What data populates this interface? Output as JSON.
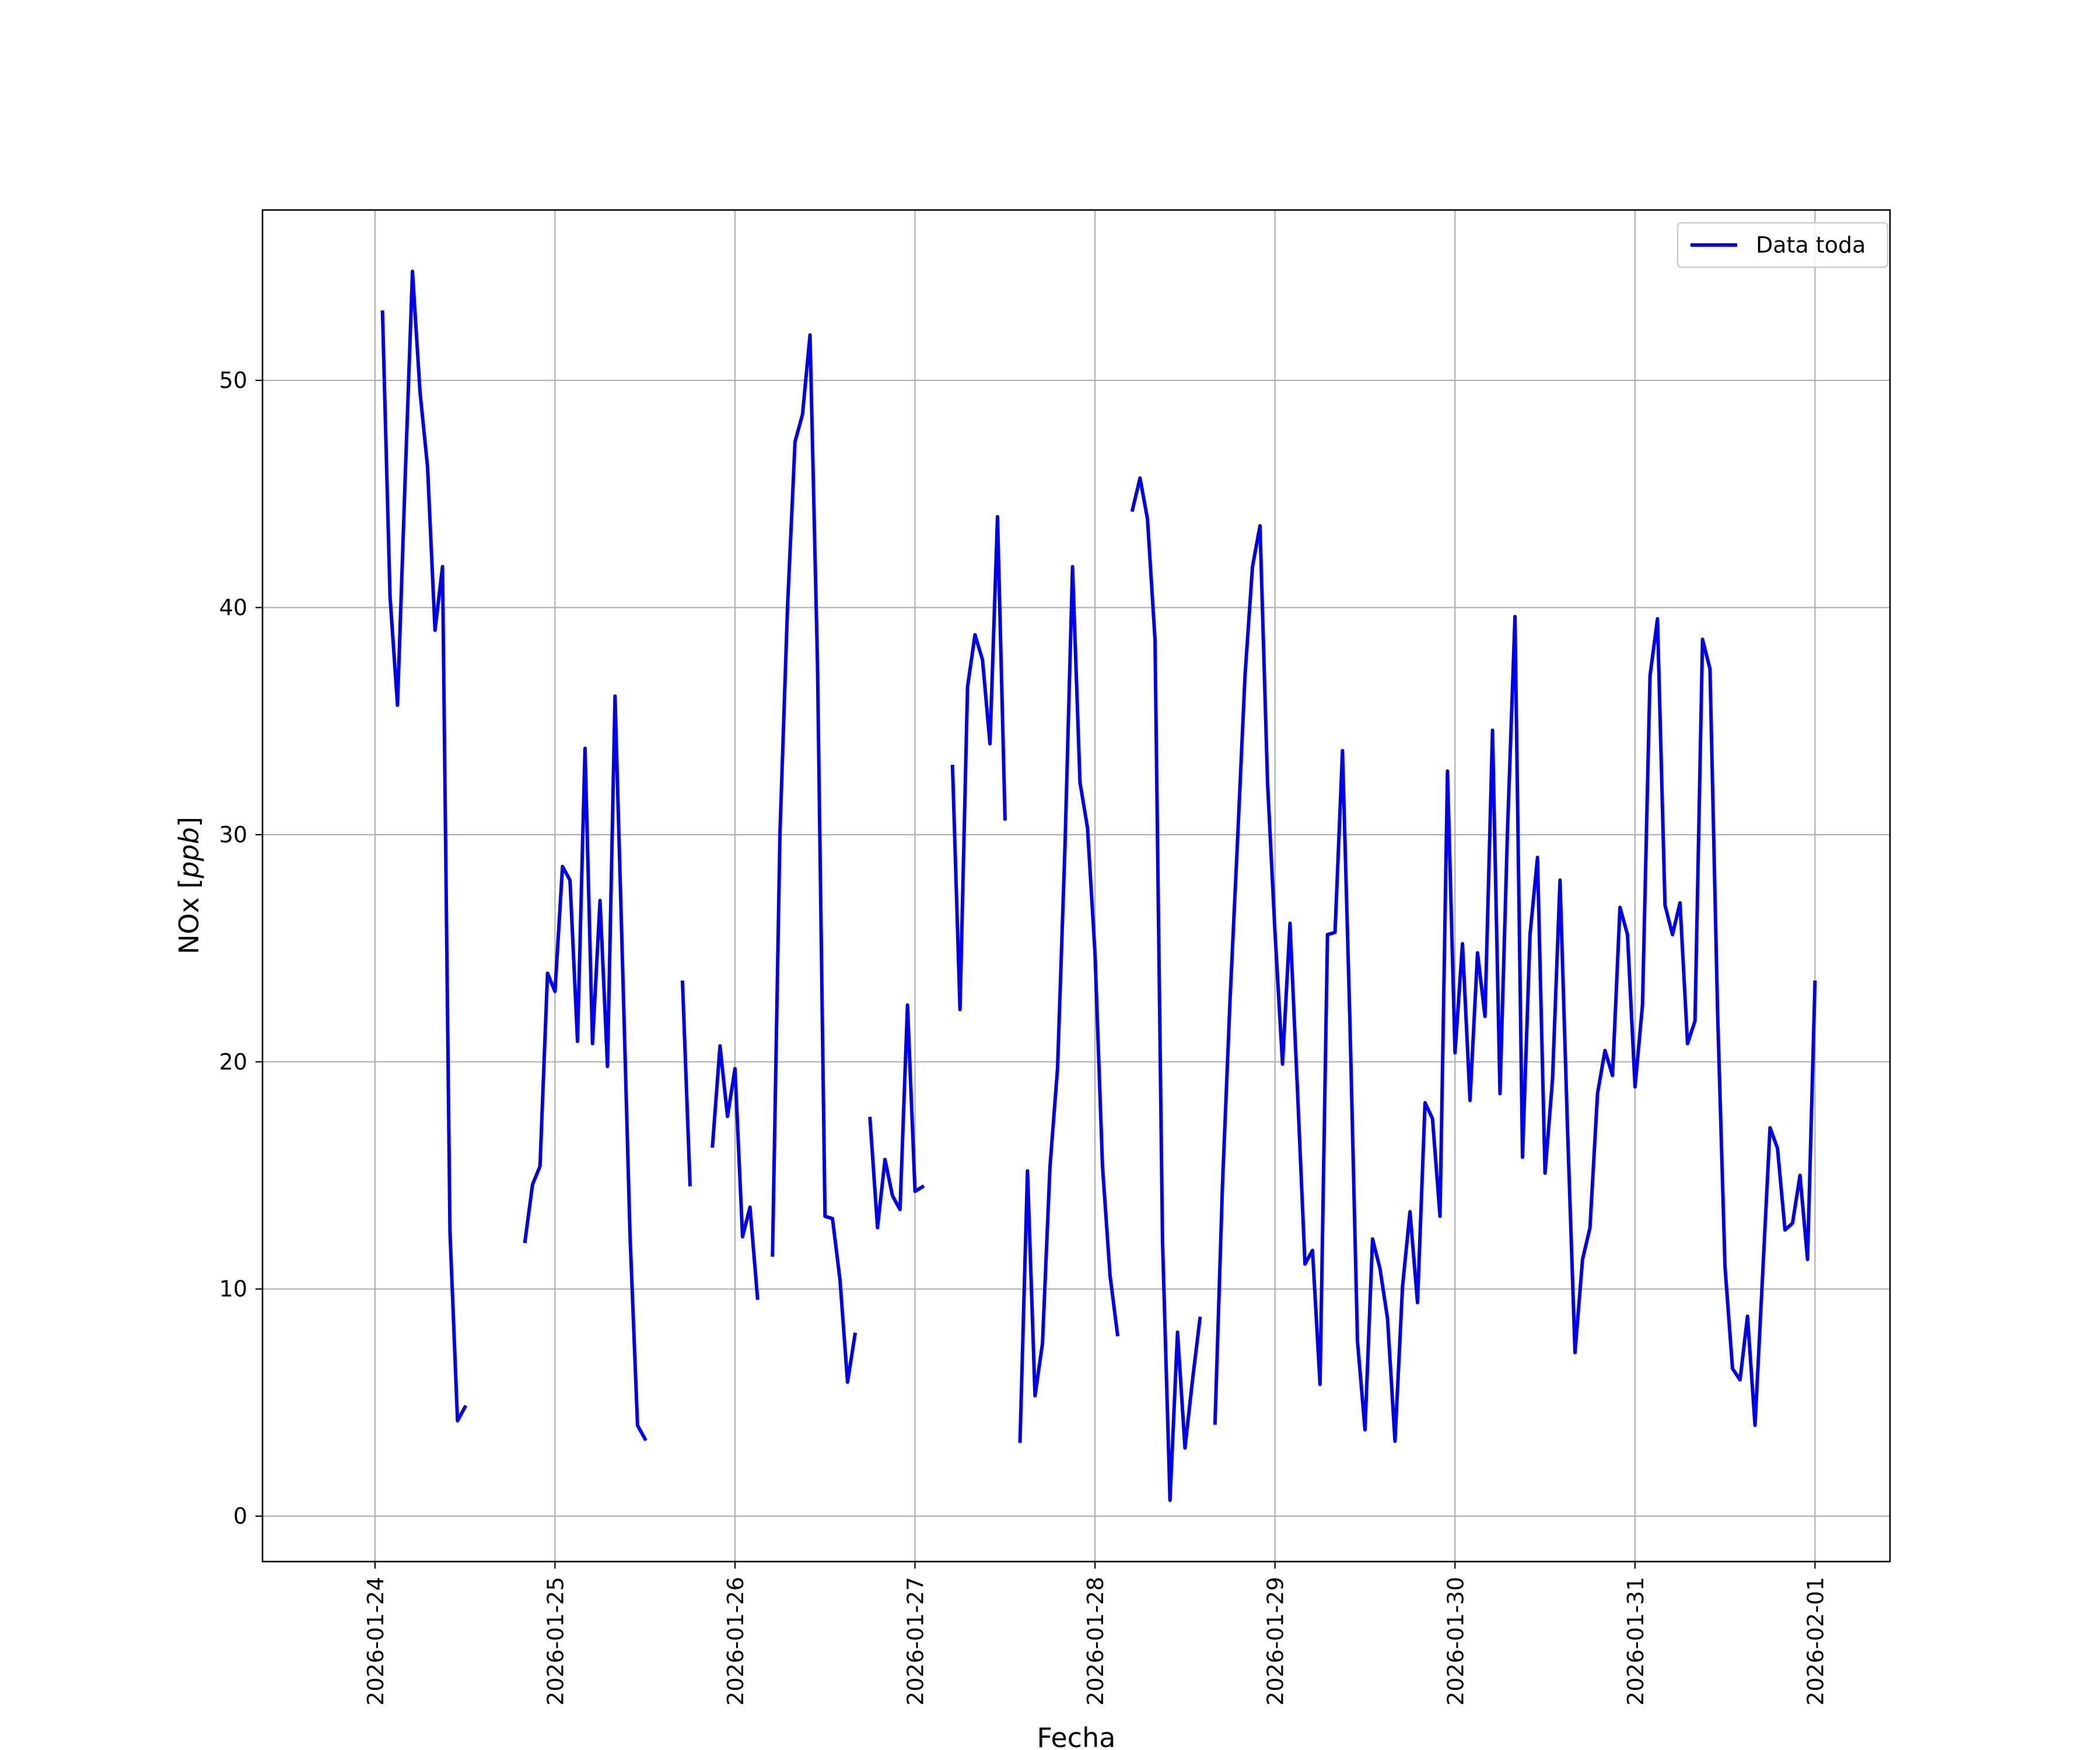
{
  "chart_data": {
    "type": "line",
    "title": "",
    "xlabel": "Fecha",
    "ylabel": "NOx [ppb]",
    "ylabel_main": "NOx ",
    "ylabel_unit": "ppb",
    "x_ticks": [
      "2026-01-24",
      "2026-01-25",
      "2026-01-26",
      "2026-01-27",
      "2026-01-28",
      "2026-01-29",
      "2026-01-30",
      "2026-01-31",
      "2026-02-01"
    ],
    "x_range": [
      "2026-01-23T09:00",
      "2026-02-01T10:00"
    ],
    "y_ticks": [
      0,
      10,
      20,
      30,
      40,
      50
    ],
    "ylim": [
      -2,
      57.5
    ],
    "grid": true,
    "legend_position": "top-right",
    "line_color": "#0000ee",
    "series": [
      {
        "name": "Data toda",
        "segments": [
          [
            [
              "2026-01-24T01:00",
              53
            ],
            [
              "2026-01-24T02:00",
              40.5
            ],
            [
              "2026-01-24T03:00",
              35.7
            ],
            [
              "2026-01-24T04:00",
              45.5
            ],
            [
              "2026-01-24T05:00",
              54.8
            ],
            [
              "2026-01-24T06:00",
              49.5
            ],
            [
              "2026-01-24T07:00",
              46.2
            ],
            [
              "2026-01-24T08:00",
              39
            ],
            [
              "2026-01-24T09:00",
              41.8
            ],
            [
              "2026-01-24T10:00",
              12.5
            ],
            [
              "2026-01-24T11:00",
              4.2
            ],
            [
              "2026-01-24T12:00",
              4.8
            ]
          ],
          [
            [
              "2026-01-24T20:00",
              12.1
            ],
            [
              "2026-01-24T21:00",
              14.6
            ],
            [
              "2026-01-24T22:00",
              15.4
            ],
            [
              "2026-01-24T23:00",
              23.9
            ],
            [
              "2026-01-25T00:00",
              23.1
            ],
            [
              "2026-01-25T01:00",
              28.6
            ],
            [
              "2026-01-25T02:00",
              28
            ],
            [
              "2026-01-25T03:00",
              20.9
            ],
            [
              "2026-01-25T04:00",
              33.8
            ],
            [
              "2026-01-25T05:00",
              20.8
            ],
            [
              "2026-01-25T06:00",
              27.1
            ],
            [
              "2026-01-25T07:00",
              19.8
            ],
            [
              "2026-01-25T08:00",
              36.1
            ],
            [
              "2026-01-25T09:00",
              24.4
            ],
            [
              "2026-01-25T10:00",
              12.4
            ],
            [
              "2026-01-25T11:00",
              4
            ],
            [
              "2026-01-25T12:00",
              3.4
            ]
          ],
          [
            [
              "2026-01-25T17:00",
              23.5
            ],
            [
              "2026-01-25T18:00",
              14.6
            ]
          ],
          [
            [
              "2026-01-25T21:00",
              16.3
            ],
            [
              "2026-01-25T22:00",
              20.7
            ],
            [
              "2026-01-25T23:00",
              17.6
            ],
            [
              "2026-01-26T00:00",
              19.7
            ],
            [
              "2026-01-26T01:00",
              12.3
            ],
            [
              "2026-01-26T02:00",
              13.6
            ],
            [
              "2026-01-26T03:00",
              9.6
            ]
          ],
          [
            [
              "2026-01-26T05:00",
              11.5
            ],
            [
              "2026-01-26T06:00",
              30.1
            ],
            [
              "2026-01-26T07:00",
              40
            ],
            [
              "2026-01-26T08:00",
              47.3
            ],
            [
              "2026-01-26T09:00",
              48.5
            ],
            [
              "2026-01-26T10:00",
              52
            ],
            [
              "2026-01-26T11:00",
              37.5
            ],
            [
              "2026-01-26T12:00",
              13.2
            ],
            [
              "2026-01-26T13:00",
              13.1
            ],
            [
              "2026-01-26T14:00",
              10.4
            ],
            [
              "2026-01-26T15:00",
              5.9
            ],
            [
              "2026-01-26T16:00",
              8
            ]
          ],
          [
            [
              "2026-01-26T18:00",
              17.5
            ],
            [
              "2026-01-26T19:00",
              12.7
            ],
            [
              "2026-01-26T20:00",
              15.7
            ],
            [
              "2026-01-26T21:00",
              14.1
            ],
            [
              "2026-01-26T22:00",
              13.5
            ],
            [
              "2026-01-26T23:00",
              22.5
            ],
            [
              "2026-01-27T00:00",
              14.3
            ],
            [
              "2026-01-27T01:00",
              14.5
            ]
          ],
          [
            [
              "2026-01-27T05:00",
              33
            ],
            [
              "2026-01-27T06:00",
              22.3
            ],
            [
              "2026-01-27T07:00",
              36.5
            ],
            [
              "2026-01-27T08:00",
              38.8
            ],
            [
              "2026-01-27T09:00",
              37.7
            ],
            [
              "2026-01-27T10:00",
              34
            ],
            [
              "2026-01-27T11:00",
              44
            ],
            [
              "2026-01-27T12:00",
              30.7
            ]
          ],
          [
            [
              "2026-01-27T14:00",
              3.3
            ],
            [
              "2026-01-27T15:00",
              15.2
            ],
            [
              "2026-01-27T16:00",
              5.3
            ],
            [
              "2026-01-27T17:00",
              7.6
            ],
            [
              "2026-01-27T18:00",
              15.4
            ],
            [
              "2026-01-27T19:00",
              19.7
            ],
            [
              "2026-01-27T20:00",
              29.5
            ],
            [
              "2026-01-27T21:00",
              41.8
            ],
            [
              "2026-01-27T22:00",
              32.3
            ],
            [
              "2026-01-27T23:00",
              30.3
            ],
            [
              "2026-01-28T00:00",
              24.8
            ],
            [
              "2026-01-28T01:00",
              15.4
            ],
            [
              "2026-01-28T02:00",
              10.6
            ],
            [
              "2026-01-28T03:00",
              8
            ]
          ],
          [
            [
              "2026-01-28T05:00",
              44.3
            ],
            [
              "2026-01-28T06:00",
              45.7
            ],
            [
              "2026-01-28T07:00",
              43.9
            ],
            [
              "2026-01-28T08:00",
              38.6
            ],
            [
              "2026-01-28T09:00",
              12.1
            ],
            [
              "2026-01-28T10:00",
              0.7
            ],
            [
              "2026-01-28T11:00",
              8.1
            ],
            [
              "2026-01-28T12:00",
              3
            ],
            [
              "2026-01-28T13:00",
              6
            ],
            [
              "2026-01-28T14:00",
              8.7
            ]
          ],
          [
            [
              "2026-01-28T16:00",
              4.1
            ],
            [
              "2026-01-28T17:00",
              14.6
            ],
            [
              "2026-01-28T18:00",
              22.7
            ],
            [
              "2026-01-28T19:00",
              29.7
            ],
            [
              "2026-01-28T20:00",
              37
            ],
            [
              "2026-01-28T21:00",
              41.8
            ],
            [
              "2026-01-28T22:00",
              43.6
            ],
            [
              "2026-01-28T23:00",
              32.3
            ],
            [
              "2026-01-29T00:00",
              25.7
            ],
            [
              "2026-01-29T01:00",
              19.9
            ],
            [
              "2026-01-29T02:00",
              26.1
            ],
            [
              "2026-01-29T03:00",
              18.7
            ],
            [
              "2026-01-29T04:00",
              11.1
            ],
            [
              "2026-01-29T05:00",
              11.7
            ],
            [
              "2026-01-29T06:00",
              5.8
            ],
            [
              "2026-01-29T07:00",
              25.6
            ],
            [
              "2026-01-29T08:00",
              25.7
            ],
            [
              "2026-01-29T09:00",
              33.7
            ],
            [
              "2026-01-29T10:00",
              21.6
            ],
            [
              "2026-01-29T11:00",
              7.7
            ],
            [
              "2026-01-29T12:00",
              3.8
            ],
            [
              "2026-01-29T13:00",
              12.2
            ],
            [
              "2026-01-29T14:00",
              10.9
            ],
            [
              "2026-01-29T15:00",
              8.7
            ],
            [
              "2026-01-29T16:00",
              3.3
            ],
            [
              "2026-01-29T17:00",
              10.1
            ],
            [
              "2026-01-29T18:00",
              13.4
            ],
            [
              "2026-01-29T19:00",
              9.4
            ],
            [
              "2026-01-29T20:00",
              18.2
            ],
            [
              "2026-01-29T21:00",
              17.5
            ],
            [
              "2026-01-29T22:00",
              13.2
            ],
            [
              "2026-01-29T23:00",
              32.8
            ],
            [
              "2026-01-30T00:00",
              20.4
            ],
            [
              "2026-01-30T01:00",
              25.2
            ],
            [
              "2026-01-30T02:00",
              18.3
            ],
            [
              "2026-01-30T03:00",
              24.8
            ],
            [
              "2026-01-30T04:00",
              22
            ],
            [
              "2026-01-30T05:00",
              34.6
            ],
            [
              "2026-01-30T06:00",
              18.6
            ],
            [
              "2026-01-30T07:00",
              30.2
            ],
            [
              "2026-01-30T08:00",
              39.6
            ],
            [
              "2026-01-30T09:00",
              15.8
            ],
            [
              "2026-01-30T10:00",
              25.6
            ],
            [
              "2026-01-30T11:00",
              29
            ],
            [
              "2026-01-30T12:00",
              15.1
            ],
            [
              "2026-01-30T13:00",
              19.2
            ],
            [
              "2026-01-30T14:00",
              28
            ],
            [
              "2026-01-30T15:00",
              17.1
            ],
            [
              "2026-01-30T16:00",
              7.2
            ],
            [
              "2026-01-30T17:00",
              11.3
            ],
            [
              "2026-01-30T18:00",
              12.7
            ],
            [
              "2026-01-30T19:00",
              18.6
            ],
            [
              "2026-01-30T20:00",
              20.5
            ],
            [
              "2026-01-30T21:00",
              19.4
            ],
            [
              "2026-01-30T22:00",
              26.8
            ],
            [
              "2026-01-30T23:00",
              25.6
            ],
            [
              "2026-01-31T00:00",
              18.9
            ],
            [
              "2026-01-31T01:00",
              22.5
            ],
            [
              "2026-01-31T02:00",
              37
            ],
            [
              "2026-01-31T03:00",
              39.5
            ],
            [
              "2026-01-31T04:00",
              26.9
            ],
            [
              "2026-01-31T05:00",
              25.6
            ],
            [
              "2026-01-31T06:00",
              27
            ],
            [
              "2026-01-31T07:00",
              20.8
            ],
            [
              "2026-01-31T08:00",
              21.8
            ],
            [
              "2026-01-31T09:00",
              38.6
            ],
            [
              "2026-01-31T10:00",
              37.3
            ],
            [
              "2026-01-31T11:00",
              22.3
            ],
            [
              "2026-01-31T12:00",
              11
            ],
            [
              "2026-01-31T13:00",
              6.5
            ],
            [
              "2026-01-31T14:00",
              6
            ],
            [
              "2026-01-31T15:00",
              8.8
            ],
            [
              "2026-01-31T16:00",
              4
            ],
            [
              "2026-01-31T17:00",
              10.5
            ],
            [
              "2026-01-31T18:00",
              17.1
            ],
            [
              "2026-01-31T19:00",
              16.2
            ],
            [
              "2026-01-31T20:00",
              12.6
            ],
            [
              "2026-01-31T21:00",
              12.9
            ],
            [
              "2026-01-31T22:00",
              15
            ],
            [
              "2026-01-31T23:00",
              11.3
            ],
            [
              "2026-02-01T00:00",
              23.5
            ]
          ]
        ]
      }
    ]
  }
}
